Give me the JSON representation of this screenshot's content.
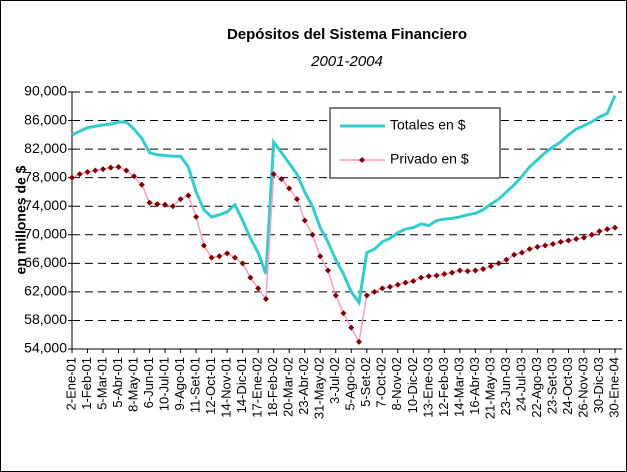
{
  "chart_data": {
    "type": "line",
    "title": "Depósitos del Sistema Financiero",
    "subtitle": "2001-2004",
    "y_label": "en millones de $",
    "categories": [
      "2-Ene-01",
      null,
      "1-Feb-01",
      null,
      "5-Mar-01",
      null,
      "5-Abr-01",
      null,
      "8-May-01",
      null,
      "6-Jun-01",
      null,
      "10-Jul-01",
      null,
      "9-Ago-01",
      null,
      "11-Set-01",
      null,
      "12-Oct-01",
      null,
      "14-Nov-01",
      null,
      "14-Dic-01",
      null,
      "17-Ene-02",
      null,
      "18-Feb-02",
      null,
      "20-Mar-02",
      null,
      "23-Abr-02",
      null,
      "31-May-02",
      null,
      "3-Jul-02",
      null,
      "5-Ago-02",
      null,
      "5-Set-02",
      null,
      "7-Oct-02",
      null,
      "8-Nov-02",
      null,
      "10-Dic-02",
      null,
      "13-Ene-03",
      null,
      "12-Feb-03",
      null,
      "14-Mar-03",
      null,
      "16-Abr-03",
      null,
      "21-May-03",
      null,
      "23-Jun-03",
      null,
      "24-Jul-03",
      null,
      "22-Ago-03",
      null,
      "23-Set-03",
      null,
      "24-Oct-03",
      null,
      "26-Nov-03",
      null,
      "30-Dic-03",
      null,
      "30-Ene-04"
    ],
    "series": [
      {
        "name": "Totales en $",
        "color": "#33cccc",
        "values": [
          84000,
          84500,
          85000,
          85200,
          85400,
          85500,
          85800,
          85800,
          84800,
          83500,
          81500,
          81200,
          81100,
          81000,
          81000,
          79500,
          76000,
          73500,
          72500,
          72800,
          73200,
          74200,
          72000,
          69500,
          67500,
          64500,
          83000,
          81500,
          80000,
          78500,
          76000,
          74000,
          71000,
          69000,
          66500,
          64500,
          62000,
          60500,
          67500,
          68000,
          69000,
          69500,
          70300,
          70800,
          71000,
          71500,
          71300,
          72000,
          72200,
          72300,
          72500,
          72800,
          73000,
          73500,
          74300,
          75000,
          76000,
          77000,
          78200,
          79500,
          80500,
          81500,
          82300,
          83000,
          84000,
          84800,
          85300,
          85800,
          86500,
          87000,
          89500
        ]
      },
      {
        "name": "Privado en $",
        "color": "#800000",
        "line_color": "#ff99cc",
        "values": [
          78000,
          78500,
          78800,
          79000,
          79200,
          79400,
          79500,
          79000,
          78200,
          77000,
          74500,
          74300,
          74200,
          74000,
          75000,
          75500,
          72500,
          68500,
          66800,
          67000,
          67400,
          66800,
          66000,
          64000,
          62500,
          61000,
          78500,
          77800,
          76500,
          75000,
          72000,
          70000,
          67000,
          65000,
          61500,
          59000,
          57000,
          55000,
          61500,
          62000,
          62500,
          62700,
          63000,
          63300,
          63500,
          64000,
          64200,
          64300,
          64500,
          64700,
          65000,
          64900,
          65000,
          65200,
          65600,
          66000,
          66500,
          67200,
          67500,
          68000,
          68300,
          68500,
          68700,
          69000,
          69200,
          69400,
          69600,
          70000,
          70500,
          70800,
          71000
        ]
      }
    ],
    "ylim": [
      54000,
      90000
    ],
    "yticks": [
      {
        "value": 54000,
        "label": "54,000"
      },
      {
        "value": 58000,
        "label": "58,000"
      },
      {
        "value": 62000,
        "label": "62,000"
      },
      {
        "value": 66000,
        "label": "66,000"
      },
      {
        "value": 70000,
        "label": "70,000"
      },
      {
        "value": 74000,
        "label": "74,000"
      },
      {
        "value": 78000,
        "label": "78,000"
      },
      {
        "value": 82000,
        "label": "82,000"
      },
      {
        "value": 86000,
        "label": "86,000"
      },
      {
        "value": 90000,
        "label": "90,000"
      }
    ],
    "grid": true,
    "legend": "upper center"
  }
}
